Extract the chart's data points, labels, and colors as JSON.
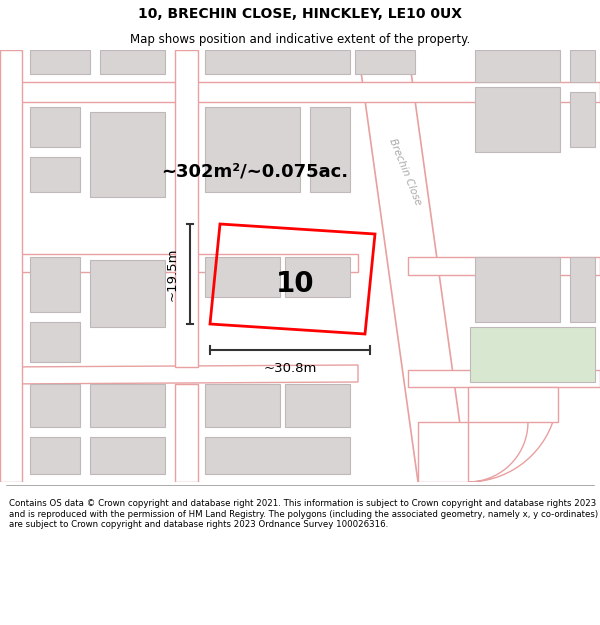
{
  "title": "10, BRECHIN CLOSE, HINCKLEY, LE10 0UX",
  "subtitle": "Map shows position and indicative extent of the property.",
  "footer": "Contains OS data © Crown copyright and database right 2021. This information is subject to Crown copyright and database rights 2023 and is reproduced with the permission of HM Land Registry. The polygons (including the associated geometry, namely x, y co-ordinates) are subject to Crown copyright and database rights 2023 Ordnance Survey 100026316.",
  "bg_color": "#ffffff",
  "map_bg": "#eeecec",
  "road_color": "#ffffff",
  "building_color": "#d8d4d4",
  "building_outline": "#c0b8b8",
  "pink_road_color": "#e8a0a0",
  "green_area_color": "#d8e8d0",
  "plot_color": "#ff0000",
  "label_area": "~302m²/~0.075ac.",
  "label_width": "~30.8m",
  "label_height": "~19.5m",
  "label_number": "10",
  "street_label": "Brechin Close",
  "title_fontsize": 10,
  "subtitle_fontsize": 8.5,
  "figsize": [
    6.0,
    6.25
  ],
  "dpi": 100
}
